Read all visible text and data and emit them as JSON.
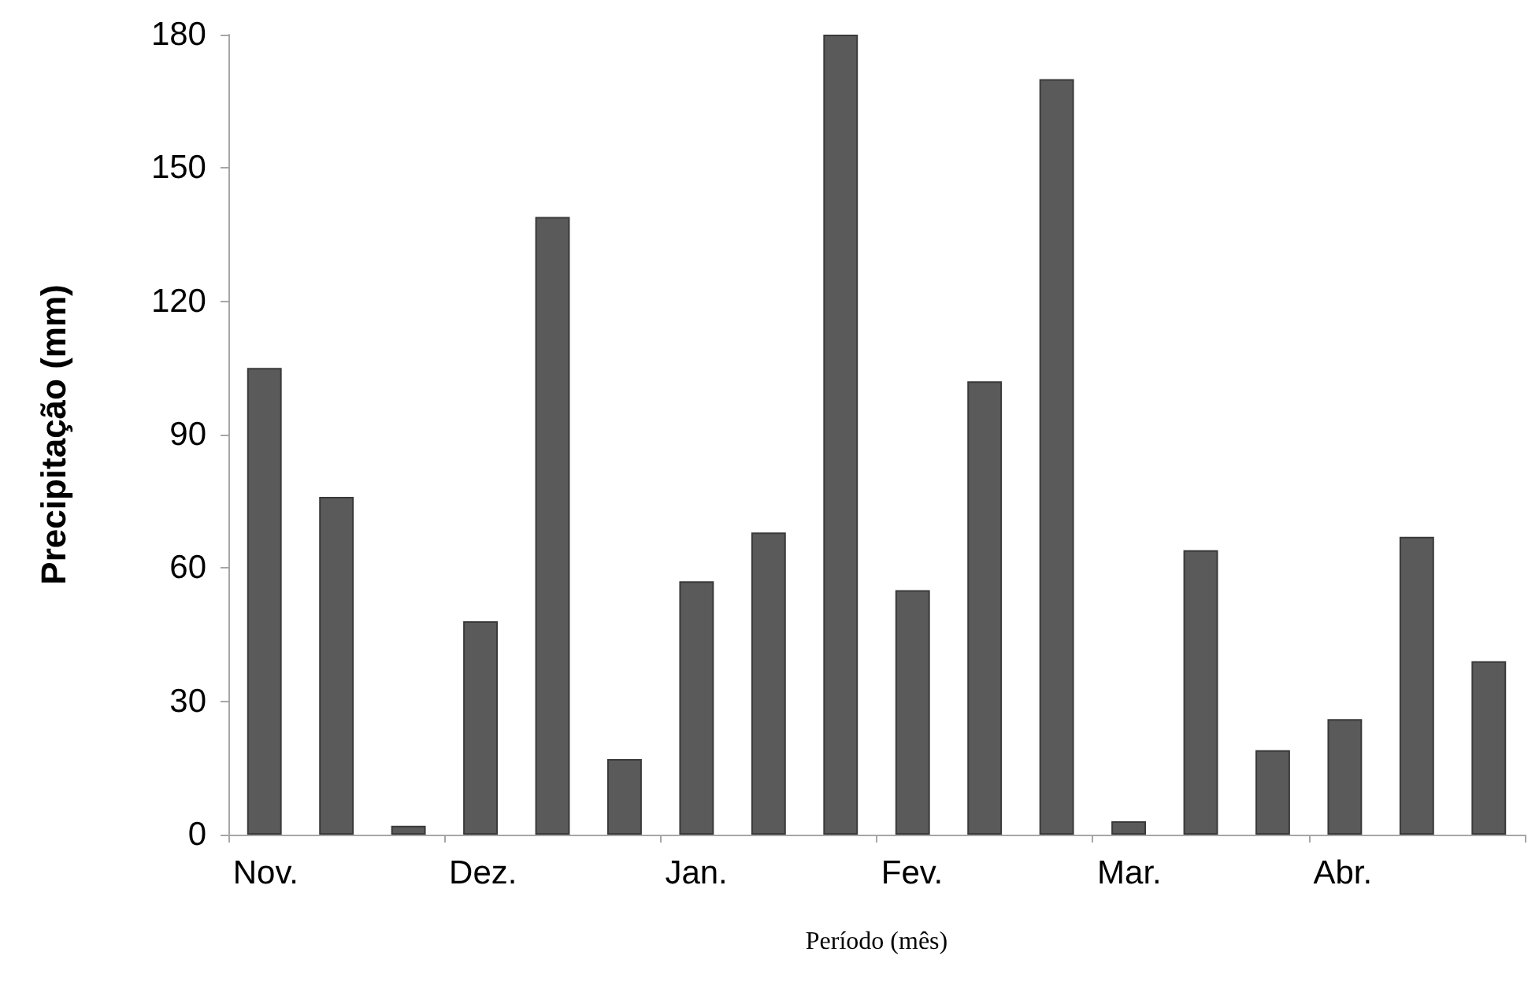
{
  "chart_data": {
    "type": "bar",
    "xlabel": "Período (mês)",
    "ylabel": "Precipitação (mm)",
    "categories": [
      "Nov.",
      null,
      null,
      "Dez.",
      null,
      null,
      "Jan.",
      null,
      null,
      "Fev.",
      null,
      null,
      "Mar.",
      null,
      null,
      "Abr.",
      null,
      null
    ],
    "values": [
      105,
      76,
      2,
      48,
      139,
      17,
      57,
      68,
      180,
      55,
      102,
      170,
      3,
      64,
      19,
      26,
      67,
      39
    ],
    "color": "#5a5a5a",
    "ylim": [
      0,
      180
    ],
    "yticks": [
      0,
      30,
      60,
      90,
      120,
      150,
      180
    ],
    "grid": false
  }
}
